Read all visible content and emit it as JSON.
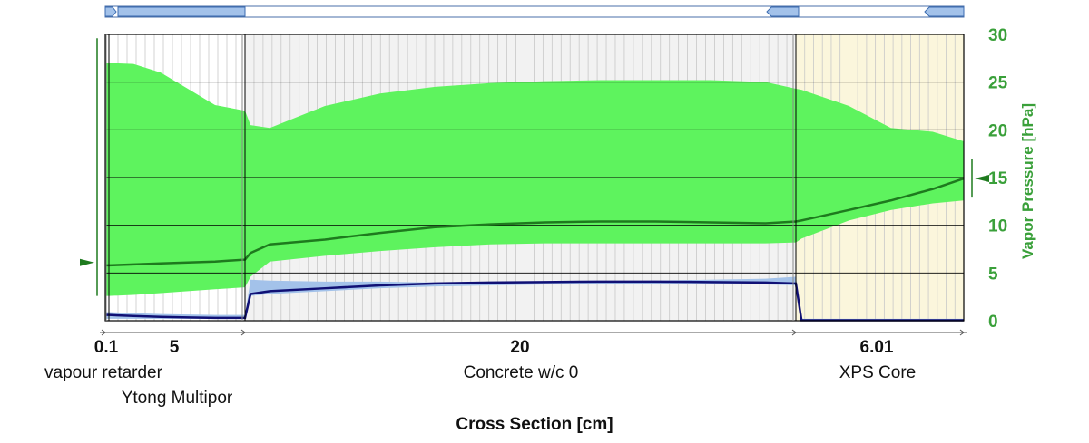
{
  "chart_data": {
    "type": "area",
    "xlabel": "Cross Section [cm]",
    "ylabel": "Vapor Pressure [hPa]",
    "ylim": [
      0,
      30
    ],
    "yticks": [
      0,
      5,
      10,
      15,
      20,
      25,
      30
    ],
    "grid": true,
    "y_axis_side": "right",
    "layers": [
      {
        "thickness": "0.1",
        "thickness_cm": 0.1,
        "name": "vapour retarder",
        "background": "#ffffff"
      },
      {
        "thickness": "5",
        "thickness_cm": 5,
        "name": "Ytong Multipor",
        "background": "#ffffff"
      },
      {
        "thickness": "20",
        "thickness_cm": 20,
        "name": "Concrete w/c 0",
        "background": "#f2f2f2"
      },
      {
        "thickness": "6.01",
        "thickness_cm": 6.01,
        "name": "XPS Core",
        "background": "#fbf6dc"
      }
    ],
    "x": [
      0,
      0.1,
      1,
      2,
      3,
      4,
      5.1,
      5.3,
      6,
      8,
      10,
      12,
      14,
      16,
      18,
      20,
      22,
      24,
      25.1,
      25.3,
      27,
      28.5,
      30,
      31.11
    ],
    "series": [
      {
        "role": "range_upper",
        "color": "#5ef35e",
        "values": [
          27,
          27,
          26.9,
          26,
          24.3,
          22.6,
          22,
          20.5,
          20.2,
          22.5,
          23.8,
          24.5,
          24.9,
          25.1,
          25.2,
          25.2,
          25.2,
          25,
          24.3,
          24.2,
          22.5,
          20.2,
          19.8,
          18.8
        ]
      },
      {
        "role": "range_lower",
        "color": "#5ef35e",
        "values": [
          2.6,
          2.6,
          2.7,
          2.9,
          3.1,
          3.3,
          3.5,
          4.6,
          6.2,
          6.8,
          7.3,
          7.7,
          8,
          8.1,
          8.1,
          8.1,
          8.1,
          8.1,
          8.2,
          8.6,
          10.5,
          11.6,
          12.3,
          12.6
        ]
      },
      {
        "role": "mean_vapour_pressure",
        "color": "#1e7a1e",
        "values": [
          5.8,
          5.8,
          5.9,
          6,
          6.1,
          6.2,
          6.4,
          7.1,
          8,
          8.5,
          9.2,
          9.8,
          10.1,
          10.3,
          10.4,
          10.4,
          10.3,
          10.2,
          10.4,
          10.5,
          11.6,
          12.6,
          13.8,
          14.9
        ]
      },
      {
        "role": "moisture_range_upper",
        "color": "#a3c2ea",
        "values": [
          0.9,
          0.9,
          0.8,
          0.7,
          0.65,
          0.6,
          0.6,
          4.3,
          4.2,
          4.1,
          4.1,
          4,
          4,
          4,
          4.1,
          4.2,
          4.3,
          4.4,
          4.6,
          0.2,
          0.2,
          0.2,
          0.2,
          0.2
        ]
      },
      {
        "role": "moisture_range_lower",
        "color": "#a3c2ea",
        "values": [
          0.2,
          0.2,
          0.2,
          0.2,
          0.2,
          0.2,
          0.2,
          2.6,
          2.8,
          3.1,
          3.4,
          3.6,
          3.7,
          3.8,
          3.8,
          3.8,
          3.8,
          3.8,
          3.7,
          0.02,
          0.02,
          0.02,
          0.02,
          0.02
        ]
      },
      {
        "role": "moisture_mean",
        "color": "#101075",
        "values": [
          0.6,
          0.6,
          0.5,
          0.4,
          0.35,
          0.3,
          0.3,
          2.8,
          3.1,
          3.4,
          3.7,
          3.9,
          4,
          4.05,
          4.1,
          4.1,
          4.05,
          4,
          3.9,
          0.05,
          0.05,
          0.05,
          0.05,
          0.05
        ]
      }
    ],
    "markers": {
      "left_value": 6.1,
      "right_value": 14.9,
      "left_range": [
        2.6,
        29.6
      ],
      "right_range": [
        12.9,
        16.9
      ],
      "color": "#1e7a1e"
    }
  },
  "scrollbar": {
    "colors": {
      "thumb": "#a3c2ea",
      "border": "#1f5aa6",
      "track": "#ffffff"
    }
  }
}
